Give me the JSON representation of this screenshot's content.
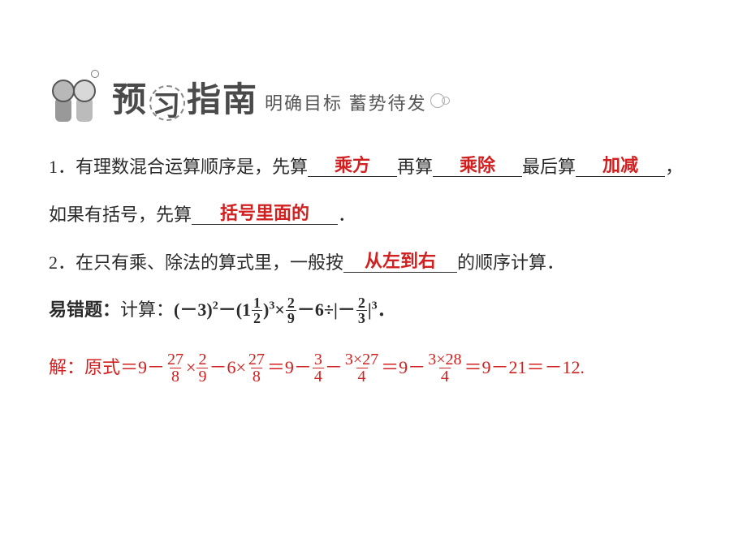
{
  "header": {
    "title_chars": [
      "预",
      "习",
      "指",
      "南"
    ],
    "subtitle_a": "明确目标",
    "subtitle_b": "蓄势待发"
  },
  "q1": {
    "num": "1．",
    "text_a": "有理数混合运算顺序是，先算",
    "ans_a": "乘方",
    "text_b": "再算",
    "ans_b": "乘除",
    "text_c": "最后算",
    "ans_c": "加减",
    "text_d": "，",
    "text_e": "如果有括号，先算",
    "ans_d": "括号里面的",
    "text_f": "．"
  },
  "q2": {
    "num": "2．",
    "text_a": "在只有乘、除法的算式里，一般按",
    "ans_a": "从左到右",
    "text_b": "的顺序计算．"
  },
  "q3": {
    "label": "易错题：",
    "prefix": "计算：",
    "expr": {
      "p1": "(－3)",
      "p1_sup": "2",
      "p2": "－(1",
      "mix_num": "1",
      "mix_den": "2",
      "p3": ")",
      "p3_sup": "3",
      "p4": "×",
      "f2_num": "2",
      "f2_den": "9",
      "p5": "－6÷|－",
      "f3_num": "2",
      "f3_den": "3",
      "p6": "|",
      "p6_sup": "3",
      "p7": "．"
    }
  },
  "solution": {
    "prefix": "解：原式＝9－",
    "f1_num": "27",
    "f1_den": "8",
    "s1": "×",
    "f2_num": "2",
    "f2_den": "9",
    "s2": "－6×",
    "f3_num": "27",
    "f3_den": "8",
    "s3": "＝9－",
    "f4_num": "3",
    "f4_den": "4",
    "s4": "－",
    "f5_num": "3×27",
    "f5_den": "4",
    "s5": "＝9－",
    "f6_num": "3×28",
    "f6_den": "4",
    "s6": "＝9－21＝－12."
  },
  "colors": {
    "text": "#2a2a2a",
    "red": "#d12020",
    "header_gray": "#4a4a4a"
  }
}
